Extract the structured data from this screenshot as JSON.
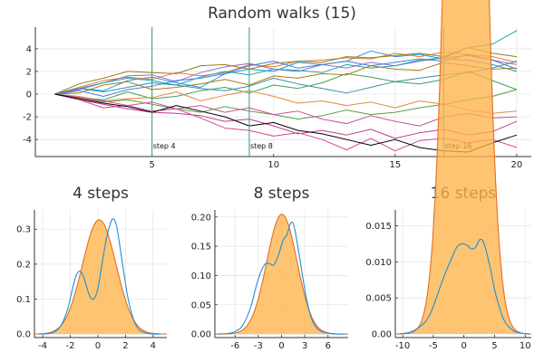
{
  "figure": {
    "top_title": "Random walks (15)"
  },
  "chart_data": [
    {
      "type": "line",
      "title": "Random walks (15)",
      "xlabel": "",
      "ylabel": "",
      "xlim": [
        0.2,
        20.6
      ],
      "ylim": [
        -5.5,
        5.9
      ],
      "x_ticks": [
        5,
        10,
        15,
        20
      ],
      "y_ticks": [
        -4,
        -2,
        0,
        2,
        4
      ],
      "grid": true,
      "legend": "none",
      "x": [
        1,
        2,
        3,
        4,
        5,
        6,
        7,
        8,
        9,
        10,
        11,
        12,
        13,
        14,
        15,
        16,
        17,
        18,
        19,
        20
      ],
      "vlines": [
        {
          "x": 5,
          "label": "step 4",
          "color": "#3a9a55"
        },
        {
          "x": 9,
          "label": "step 8",
          "color": "#2a9d8f"
        },
        {
          "x": 17,
          "label": "step 16",
          "color": "#1aa39a"
        }
      ],
      "series": [
        {
          "color": "#1e9ad6",
          "values": [
            0,
            0.5,
            0.3,
            1.2,
            1.5,
            1.0,
            0.6,
            1.8,
            2.2,
            2.0,
            2.8,
            2.6,
            2.9,
            3.8,
            3.3,
            3.5,
            3.1,
            3.0,
            2.6,
            2.0
          ]
        },
        {
          "color": "#e07b39",
          "values": [
            0,
            0.6,
            1.2,
            1.5,
            1.3,
            1.9,
            1.6,
            1.9,
            2.6,
            2.4,
            2.9,
            3.0,
            3.2,
            3.1,
            3.6,
            3.3,
            3.7,
            3.5,
            3.3,
            2.8
          ]
        },
        {
          "color": "#3aa05a",
          "values": [
            0,
            -0.3,
            -0.5,
            0.2,
            -0.4,
            -0.2,
            0.3,
            0.6,
            0.1,
            0.8,
            0.5,
            1.0,
            1.8,
            1.5,
            1.1,
            0.9,
            1.3,
            2.0,
            1.2,
            0.4
          ]
        },
        {
          "color": "#c23b8e",
          "values": [
            0,
            -0.5,
            -0.9,
            -1.3,
            -1.6,
            -1.7,
            -1.9,
            -2.4,
            -2.2,
            -2.8,
            -3.5,
            -3.2,
            -3.6,
            -3.1,
            -3.9,
            -3.4,
            -3.1,
            -3.6,
            -3.3,
            -2.4
          ]
        },
        {
          "color": "#8f6ed5",
          "values": [
            0,
            0.4,
            1.0,
            1.6,
            1.7,
            1.1,
            1.9,
            2.4,
            2.7,
            2.2,
            2.0,
            2.6,
            2.3,
            2.8,
            2.5,
            2.9,
            3.2,
            3.4,
            3.0,
            2.6
          ]
        },
        {
          "color": "#9a7b1c",
          "values": [
            0,
            0.9,
            1.4,
            2.0,
            1.9,
            1.8,
            2.5,
            2.6,
            2.2,
            2.7,
            2.9,
            2.8,
            3.3,
            3.2,
            3.4,
            3.6,
            3.3,
            4.1,
            3.6,
            3.3
          ]
        },
        {
          "color": "#d4488f",
          "values": [
            0,
            -0.5,
            -1.2,
            -1.0,
            -1.5,
            -1.3,
            -2.1,
            -3.0,
            -3.2,
            -3.7,
            -3.4,
            -4.0,
            -4.9,
            -3.9,
            -5.0,
            -4.1,
            -3.9,
            -4.3,
            -4.0,
            -4.7
          ]
        },
        {
          "color": "#4a7cd6",
          "values": [
            0,
            0.3,
            -0.2,
            0.4,
            0.7,
            1.2,
            1.4,
            1.8,
            2.5,
            2.9,
            2.3,
            2.6,
            2.9,
            2.5,
            2.8,
            3.1,
            2.9,
            3.5,
            3.0,
            2.2
          ]
        },
        {
          "color": "#a67b16",
          "values": [
            0,
            0.1,
            0.8,
            1.1,
            0.4,
            0.6,
            0.9,
            1.3,
            0.8,
            1.6,
            1.4,
            1.8,
            1.7,
            2.5,
            2.2,
            2.1,
            2.8,
            2.5,
            2.2,
            2.3
          ]
        },
        {
          "color": "#5a9e3f",
          "values": [
            0,
            -0.3,
            -0.7,
            -0.5,
            -0.9,
            -1.3,
            -1.6,
            -1.1,
            -1.5,
            -1.8,
            -2.2,
            -1.9,
            -1.4,
            -1.8,
            -1.6,
            -1.2,
            -0.9,
            -0.5,
            -0.2,
            0.4
          ]
        },
        {
          "color": "#1aa4b6",
          "values": [
            0,
            0.5,
            1.0,
            1.4,
            1.2,
            0.8,
            1.5,
            2.0,
            1.7,
            2.2,
            2.1,
            1.9,
            2.6,
            2.3,
            2.5,
            3.0,
            3.2,
            4.1,
            4.4,
            5.6
          ]
        },
        {
          "color": "#e38a3c",
          "values": [
            0,
            -0.2,
            -0.6,
            -0.4,
            -0.3,
            0.2,
            -0.6,
            -0.1,
            0.3,
            -0.2,
            -0.8,
            -0.6,
            -1.0,
            -0.7,
            -1.2,
            -0.6,
            -0.9,
            -1.4,
            -1.7,
            -1.5
          ]
        },
        {
          "color": "#3b8fa8",
          "values": [
            0,
            0.5,
            0.2,
            0.6,
            1.0,
            0.8,
            0.5,
            0.3,
            0.7,
            1.4,
            0.9,
            0.5,
            0.1,
            0.6,
            1.1,
            1.4,
            1.7,
            1.9,
            2.3,
            2.9
          ]
        },
        {
          "color": "#c8529e",
          "values": [
            0,
            -0.3,
            -0.6,
            -1.0,
            -0.7,
            -1.3,
            -1.0,
            -1.6,
            -1.2,
            -1.8,
            -1.5,
            -2.2,
            -2.6,
            -1.9,
            -2.4,
            -2.8,
            -2.0,
            -1.7,
            -2.1,
            -2.0
          ]
        },
        {
          "color": "#000000",
          "values": [
            0,
            -0.4,
            -0.8,
            -1.1,
            -1.6,
            -1.0,
            -1.5,
            -2.0,
            -2.8,
            -2.5,
            -3.2,
            -3.5,
            -4.0,
            -4.5,
            -4.0,
            -4.7,
            -5.0,
            -5.1,
            -4.3,
            -3.6
          ]
        }
      ]
    },
    {
      "type": "area",
      "title": "4 steps",
      "xlabel": "",
      "ylabel": "",
      "xlim": [
        -4.6,
        5.0
      ],
      "ylim": [
        -0.01,
        0.355
      ],
      "x_ticks": [
        -4,
        -2,
        0,
        2,
        4
      ],
      "y_ticks": [
        0.0,
        0.1,
        0.2,
        0.3
      ],
      "y_tick_labels": [
        "0.0",
        "0.1",
        "0.2",
        "0.3"
      ],
      "grid": true,
      "legend": "none",
      "normal_mean": 0.1,
      "normal_sd": 1.22,
      "normal_color": "#e26f23",
      "fill_color": "#ffb44a",
      "kde_color": "#1e90d5",
      "kde_x": [
        -4.3,
        -3.5,
        -3.0,
        -2.6,
        -2.2,
        -1.9,
        -1.6,
        -1.35,
        -1.1,
        -0.85,
        -0.6,
        -0.3,
        0.0,
        0.3,
        0.6,
        0.9,
        1.1,
        1.35,
        1.6,
        1.9,
        2.2,
        2.6,
        3.0,
        3.5,
        4.0,
        4.6
      ],
      "kde_y": [
        0.0,
        0.002,
        0.01,
        0.03,
        0.07,
        0.12,
        0.165,
        0.18,
        0.17,
        0.14,
        0.11,
        0.1,
        0.13,
        0.2,
        0.27,
        0.315,
        0.33,
        0.31,
        0.25,
        0.17,
        0.1,
        0.04,
        0.012,
        0.003,
        0.0,
        0.0
      ]
    },
    {
      "type": "area",
      "title": "8 steps",
      "xlabel": "",
      "ylabel": "",
      "xlim": [
        -8.6,
        8.6
      ],
      "ylim": [
        -0.006,
        0.212
      ],
      "x_ticks": [
        -6,
        -3,
        0,
        3,
        6
      ],
      "y_ticks": [
        0.0,
        0.05,
        0.1,
        0.15,
        0.2
      ],
      "y_tick_labels": [
        "0.00",
        "0.05",
        "0.10",
        "0.15",
        "0.20"
      ],
      "grid": true,
      "legend": "none",
      "normal_mean": 0.05,
      "normal_sd": 1.95,
      "normal_color": "#e26f23",
      "fill_color": "#ffb44a",
      "kde_color": "#1e90d5",
      "kde_x": [
        -8.2,
        -7,
        -6,
        -5,
        -4,
        -3.3,
        -2.7,
        -2.1,
        -1.5,
        -1.0,
        -0.4,
        0.2,
        0.7,
        1.2,
        1.6,
        2.1,
        2.7,
        3.3,
        4.0,
        4.8,
        5.8,
        7,
        8.2
      ],
      "kde_y": [
        0.0,
        0.001,
        0.004,
        0.015,
        0.045,
        0.08,
        0.105,
        0.12,
        0.12,
        0.118,
        0.135,
        0.16,
        0.17,
        0.19,
        0.185,
        0.15,
        0.1,
        0.055,
        0.022,
        0.007,
        0.002,
        0.0,
        0.0
      ]
    },
    {
      "type": "area",
      "title": "16 steps",
      "xlabel": "",
      "ylabel": "",
      "xlim": [
        -11.2,
        11.0
      ],
      "ylim": [
        -0.0005,
        0.0172
      ],
      "x_ticks": [
        -10,
        -5,
        0,
        5,
        10
      ],
      "y_ticks": [
        0.0,
        0.005,
        0.01,
        0.015
      ],
      "y_tick_labels": [
        "0.00",
        "0.005",
        "0.010",
        "0.015"
      ],
      "grid": true,
      "legend": "none",
      "normal_mean": 0.3,
      "normal_sd": 2.4,
      "normal_color": "#e26f23",
      "fill_color": "#ffb44a",
      "kde_color": "#1e90d5",
      "kde_x": [
        -10.8,
        -9,
        -7.5,
        -6,
        -5,
        -4,
        -3,
        -2,
        -1.2,
        -0.4,
        0.5,
        1.2,
        1.9,
        2.6,
        3.3,
        4.2,
        5.2,
        6.5,
        8,
        9.5,
        10.8
      ],
      "kde_y": [
        0.0,
        0.0002,
        0.0008,
        0.002,
        0.0038,
        0.0062,
        0.0085,
        0.0105,
        0.012,
        0.0125,
        0.0123,
        0.0118,
        0.012,
        0.0131,
        0.0125,
        0.0095,
        0.0055,
        0.002,
        0.0005,
        0.0001,
        0.0
      ]
    }
  ]
}
